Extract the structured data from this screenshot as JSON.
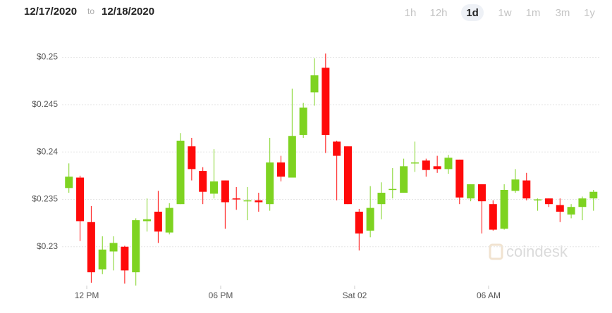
{
  "header": {
    "from": "12/17/2020",
    "to_word": "to",
    "to": "12/18/2020",
    "ranges": [
      "1h",
      "12h",
      "1d",
      "1w",
      "1m",
      "3m",
      "1y"
    ],
    "selected_range": 2
  },
  "watermark": "coindesk",
  "chart_data": {
    "type": "candlestick",
    "x": [
      11.2,
      11.7,
      12.2,
      12.7,
      13.2,
      13.7,
      14.2,
      14.7,
      15.2,
      15.7,
      16.2,
      16.7,
      17.2,
      17.7,
      18.2,
      18.7,
      19.2,
      19.7,
      20.2,
      20.7,
      21.2,
      21.7,
      22.2,
      22.7,
      23.2,
      23.7,
      24.2,
      24.7,
      25.2,
      25.7,
      26.2,
      26.7,
      27.2,
      27.7,
      28.2,
      28.7,
      29.2,
      29.7,
      30.2,
      30.7,
      31.2,
      31.7,
      32.2,
      32.7,
      33.2,
      33.7,
      34.2,
      34.7
    ],
    "open": [
      0.2362,
      0.2373,
      0.2326,
      0.2276,
      0.2295,
      0.23,
      0.2273,
      0.2327,
      0.2337,
      0.2315,
      0.2345,
      0.2406,
      0.238,
      0.2356,
      0.237,
      0.2351,
      0.2349,
      0.2349,
      0.2345,
      0.2389,
      0.2373,
      0.2418,
      0.2463,
      0.2489,
      0.2411,
      0.2406,
      0.2337,
      0.2317,
      0.2345,
      0.2361,
      0.2357,
      0.2389,
      0.2391,
      0.2385,
      0.2382,
      0.2392,
      0.2351,
      0.2366,
      0.2345,
      0.2319,
      0.2359,
      0.237,
      0.2349,
      0.2351,
      0.2344,
      0.2334,
      0.2342,
      0.2351
    ],
    "high": [
      0.2388,
      0.2375,
      0.2343,
      0.2311,
      0.2311,
      0.2301,
      0.233,
      0.2351,
      0.2359,
      0.2346,
      0.242,
      0.2415,
      0.2384,
      0.2403,
      0.237,
      0.2363,
      0.2363,
      0.2357,
      0.2415,
      0.2396,
      0.2467,
      0.2452,
      0.2499,
      0.2504,
      0.2412,
      0.2406,
      0.234,
      0.2364,
      0.2368,
      0.2383,
      0.2393,
      0.2411,
      0.2393,
      0.2396,
      0.2397,
      0.2392,
      0.2366,
      0.2366,
      0.2349,
      0.2366,
      0.2382,
      0.2378,
      0.2351,
      0.2351,
      0.2351,
      0.2345,
      0.2353,
      0.236
    ],
    "low": [
      0.2357,
      0.2306,
      0.2262,
      0.2271,
      0.2275,
      0.2261,
      0.2259,
      0.2316,
      0.2304,
      0.2313,
      0.2345,
      0.237,
      0.2345,
      0.2351,
      0.2319,
      0.2339,
      0.2328,
      0.2337,
      0.2338,
      0.2369,
      0.2373,
      0.2415,
      0.2449,
      0.2399,
      0.2349,
      0.2345,
      0.2296,
      0.231,
      0.2329,
      0.2351,
      0.2357,
      0.2379,
      0.2374,
      0.2378,
      0.2377,
      0.2345,
      0.2348,
      0.2314,
      0.2317,
      0.2318,
      0.2357,
      0.2349,
      0.2338,
      0.2342,
      0.2326,
      0.233,
      0.2328,
      0.2338
    ],
    "close": [
      0.2374,
      0.2327,
      0.2273,
      0.2297,
      0.2304,
      0.2275,
      0.2328,
      0.2329,
      0.2316,
      0.2341,
      0.2412,
      0.2382,
      0.2358,
      0.2369,
      0.2347,
      0.235,
      0.2349,
      0.2347,
      0.2389,
      0.2374,
      0.2417,
      0.2447,
      0.2481,
      0.2418,
      0.2396,
      0.2345,
      0.2314,
      0.2341,
      0.2357,
      0.2361,
      0.2385,
      0.2389,
      0.2381,
      0.2382,
      0.2394,
      0.2352,
      0.2366,
      0.2348,
      0.2318,
      0.236,
      0.2371,
      0.2351,
      0.235,
      0.2345,
      0.2337,
      0.2342,
      0.2351,
      0.2358
    ],
    "up_color": "#7ed321",
    "down_color": "#ff0a0a",
    "grid": true,
    "xlim": [
      10.64,
      34.96
    ],
    "xticks": [
      {
        "value": 12,
        "label": "12 PM"
      },
      {
        "value": 18,
        "label": "06 PM"
      },
      {
        "value": 24,
        "label": "Sat 02"
      },
      {
        "value": 30,
        "label": "06 AM"
      }
    ],
    "ylim": [
      0.2256,
      0.2516
    ],
    "yticks": [
      {
        "value": 0.25,
        "label": "$0.25"
      },
      {
        "value": 0.245,
        "label": "$0.245"
      },
      {
        "value": 0.24,
        "label": "$0.24"
      },
      {
        "value": 0.235,
        "label": "$0.235"
      },
      {
        "value": 0.23,
        "label": "$0.23"
      }
    ]
  }
}
